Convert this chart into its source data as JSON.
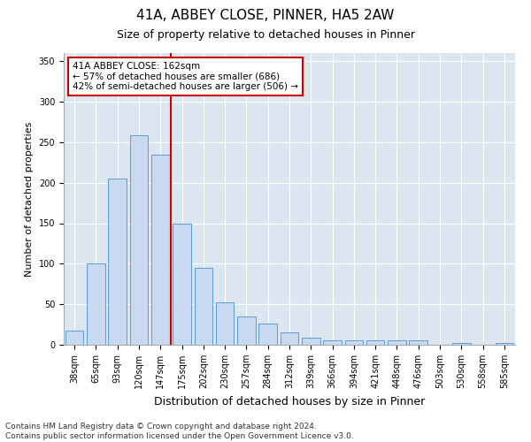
{
  "title1": "41A, ABBEY CLOSE, PINNER, HA5 2AW",
  "title2": "Size of property relative to detached houses in Pinner",
  "xlabel": "Distribution of detached houses by size in Pinner",
  "ylabel": "Number of detached properties",
  "categories": [
    "38sqm",
    "65sqm",
    "93sqm",
    "120sqm",
    "147sqm",
    "175sqm",
    "202sqm",
    "230sqm",
    "257sqm",
    "284sqm",
    "312sqm",
    "339sqm",
    "366sqm",
    "394sqm",
    "421sqm",
    "448sqm",
    "476sqm",
    "503sqm",
    "530sqm",
    "558sqm",
    "585sqm"
  ],
  "values": [
    18,
    100,
    205,
    258,
    235,
    150,
    95,
    52,
    35,
    26,
    15,
    9,
    5,
    5,
    5,
    5,
    5,
    0,
    2,
    0,
    2
  ],
  "bar_color": "#c9daf0",
  "bar_edge_color": "#5b9bd5",
  "vline_color": "#cc0000",
  "annotation_text": "41A ABBEY CLOSE: 162sqm\n← 57% of detached houses are smaller (686)\n42% of semi-detached houses are larger (506) →",
  "annotation_box_color": "#ffffff",
  "annotation_box_edge": "#cc0000",
  "ylim": [
    0,
    360
  ],
  "yticks": [
    0,
    50,
    100,
    150,
    200,
    250,
    300,
    350
  ],
  "footnote": "Contains HM Land Registry data © Crown copyright and database right 2024.\nContains public sector information licensed under the Open Government Licence v3.0.",
  "plot_bg_color": "#dce6f1",
  "title1_fontsize": 11,
  "title2_fontsize": 9,
  "xlabel_fontsize": 9,
  "ylabel_fontsize": 8,
  "tick_fontsize": 7,
  "footnote_fontsize": 6.5
}
